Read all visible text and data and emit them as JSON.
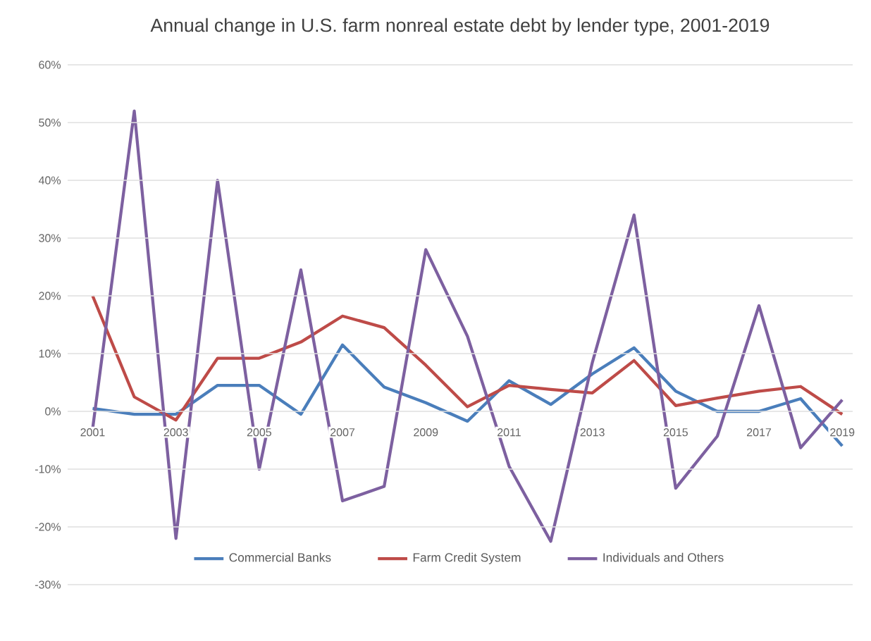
{
  "chart_data": {
    "type": "line",
    "title": "Annual change in U.S. farm nonreal estate debt by lender type, 2001-2019",
    "categories": [
      "2001",
      null,
      "2003",
      null,
      "2005",
      null,
      "2007",
      null,
      "2009",
      null,
      "2011",
      null,
      "2013",
      null,
      "2015",
      null,
      "2017",
      null,
      "2019"
    ],
    "series": [
      {
        "name": "Commercial Banks",
        "color": "#4a7ebb",
        "values": [
          0.5,
          -0.5,
          -0.5,
          4.5,
          4.5,
          -0.5,
          11.5,
          4.2,
          1.5,
          -1.7,
          5.3,
          1.2,
          6.5,
          11,
          3.5,
          0,
          0,
          2.2,
          -6
        ]
      },
      {
        "name": "Farm Credit System",
        "color": "#be4b48",
        "values": [
          20,
          2.5,
          -1.5,
          9.2,
          9.2,
          12,
          16.5,
          14.5,
          8,
          0.8,
          4.5,
          3.8,
          3.2,
          8.8,
          1,
          2.3,
          3.5,
          4.3,
          -0.5
        ]
      },
      {
        "name": "Individuals and Others",
        "color": "#7d60a0",
        "values": [
          -3,
          52,
          -22,
          40,
          -10,
          24.5,
          -15.5,
          -13,
          28,
          13,
          -9.5,
          -22.5,
          8.5,
          34,
          -13.3,
          -4.3,
          18.3,
          -6.3,
          2
        ]
      }
    ],
    "ylim": [
      -30,
      60
    ],
    "yticks": [
      {
        "value": -30,
        "label": "-30%"
      },
      {
        "value": -20,
        "label": "-20%"
      },
      {
        "value": -10,
        "label": "-10%"
      },
      {
        "value": 0,
        "label": "0%"
      },
      {
        "value": 10,
        "label": "10%"
      },
      {
        "value": 20,
        "label": "20%"
      },
      {
        "value": 30,
        "label": "30%"
      },
      {
        "value": 40,
        "label": "40%"
      },
      {
        "value": 50,
        "label": "50%"
      },
      {
        "value": 60,
        "label": "60%"
      }
    ],
    "grid": "y",
    "legend": "bottom",
    "marker": "none",
    "line_style": "solid"
  }
}
